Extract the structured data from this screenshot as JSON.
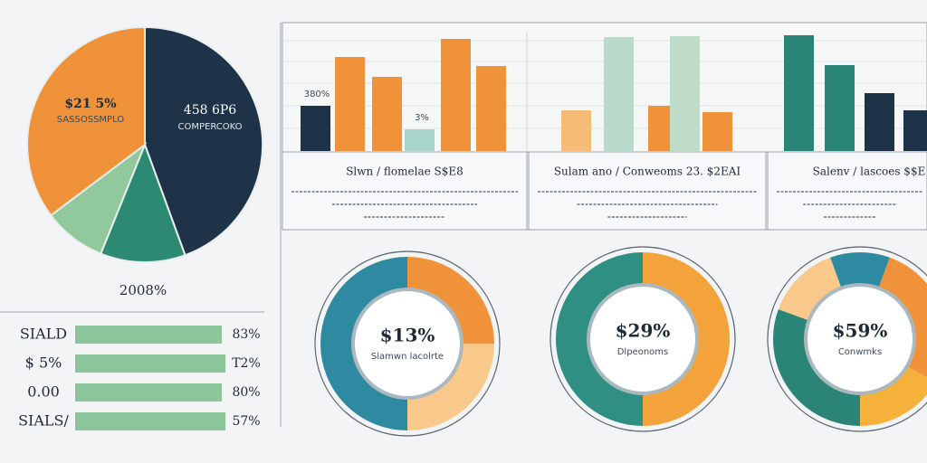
{
  "pie": {
    "left_label": "$21 5%",
    "left_sub": "SASSOSSMPLO",
    "right_label": "458 6P6",
    "right_sub": "COMPERCOKO",
    "bottom_label": "2008%"
  },
  "bar_list": [
    {
      "label": "SIALD",
      "value": "83%"
    },
    {
      "label": "$ 5%",
      "value": "T2%"
    },
    {
      "label": "0.00",
      "value": "80%"
    },
    {
      "label": "SIALS/",
      "value": "57%"
    }
  ],
  "bar_panel": {
    "labels": [
      "380%",
      "3%"
    ]
  },
  "captions": [
    "Slwn / flomelae S$E8",
    "Sulam ano / Conweoms 23. $2EAI",
    "Salenv / lascoes $$E"
  ],
  "donuts": [
    {
      "value": "$13%",
      "label": "Slamwn lacolrte"
    },
    {
      "value": "$29%",
      "label": "Dlpeonoms"
    },
    {
      "value": "$59%",
      "label": "Conwmks"
    }
  ]
}
